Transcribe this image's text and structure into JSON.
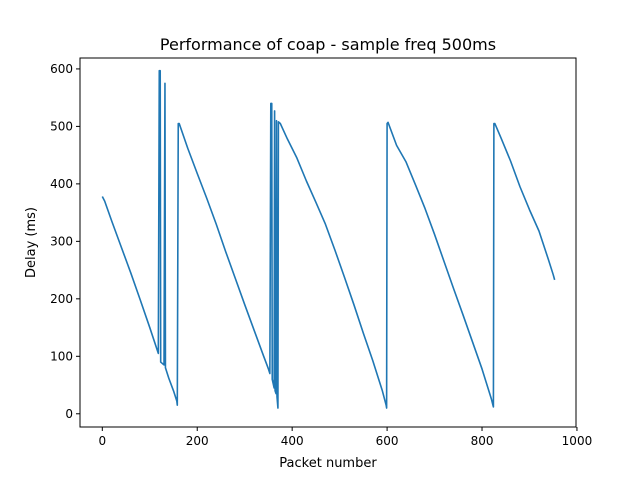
{
  "chart_data": {
    "type": "line",
    "title": "Performance of coap - sample freq 500ms",
    "xlabel": "Packet number",
    "ylabel": "Delay (ms)",
    "xlim": [
      -47,
      998
    ],
    "ylim": [
      -23,
      619
    ],
    "xticks": [
      0,
      200,
      400,
      600,
      800,
      1000
    ],
    "yticks": [
      0,
      100,
      200,
      300,
      400,
      500,
      600
    ],
    "grid": false,
    "color": "#1f77b4",
    "series": [
      {
        "points": [
          [
            0,
            378
          ],
          [
            5,
            370
          ],
          [
            20,
            335
          ],
          [
            40,
            290
          ],
          [
            60,
            245
          ],
          [
            80,
            198
          ],
          [
            100,
            150
          ],
          [
            118,
            105
          ],
          [
            120,
            597
          ],
          [
            122,
            597
          ],
          [
            123,
            90
          ],
          [
            130,
            85
          ],
          [
            132,
            575
          ],
          [
            133,
            80
          ],
          [
            140,
            62
          ],
          [
            150,
            40
          ],
          [
            157,
            22
          ],
          [
            158,
            15
          ],
          [
            160,
            505
          ],
          [
            162,
            505
          ],
          [
            180,
            462
          ],
          [
            200,
            418
          ],
          [
            220,
            375
          ],
          [
            240,
            330
          ],
          [
            260,
            282
          ],
          [
            280,
            236
          ],
          [
            300,
            190
          ],
          [
            320,
            145
          ],
          [
            340,
            100
          ],
          [
            350,
            78
          ],
          [
            353,
            70
          ],
          [
            355,
            540
          ],
          [
            357,
            540
          ],
          [
            358,
            60
          ],
          [
            362,
            45
          ],
          [
            363,
            527
          ],
          [
            364,
            40
          ],
          [
            366,
            35
          ],
          [
            367,
            510
          ],
          [
            368,
            30
          ],
          [
            369,
            20
          ],
          [
            370,
            10
          ],
          [
            371,
            508
          ],
          [
            375,
            505
          ],
          [
            390,
            478
          ],
          [
            410,
            445
          ],
          [
            430,
            405
          ],
          [
            450,
            368
          ],
          [
            470,
            330
          ],
          [
            490,
            285
          ],
          [
            510,
            238
          ],
          [
            530,
            190
          ],
          [
            550,
            140
          ],
          [
            570,
            92
          ],
          [
            590,
            40
          ],
          [
            598,
            15
          ],
          [
            599,
            10
          ],
          [
            600,
            505
          ],
          [
            602,
            507
          ],
          [
            620,
            467
          ],
          [
            640,
            438
          ],
          [
            660,
            398
          ],
          [
            680,
            357
          ],
          [
            700,
            312
          ],
          [
            720,
            265
          ],
          [
            740,
            218
          ],
          [
            760,
            172
          ],
          [
            780,
            125
          ],
          [
            800,
            78
          ],
          [
            820,
            25
          ],
          [
            823,
            15
          ],
          [
            824,
            12
          ],
          [
            825,
            505
          ],
          [
            827,
            505
          ],
          [
            840,
            480
          ],
          [
            860,
            440
          ],
          [
            880,
            395
          ],
          [
            900,
            355
          ],
          [
            920,
            318
          ],
          [
            940,
            268
          ],
          [
            950,
            242
          ],
          [
            952,
            236
          ],
          [
            953,
            233
          ]
        ]
      }
    ]
  }
}
